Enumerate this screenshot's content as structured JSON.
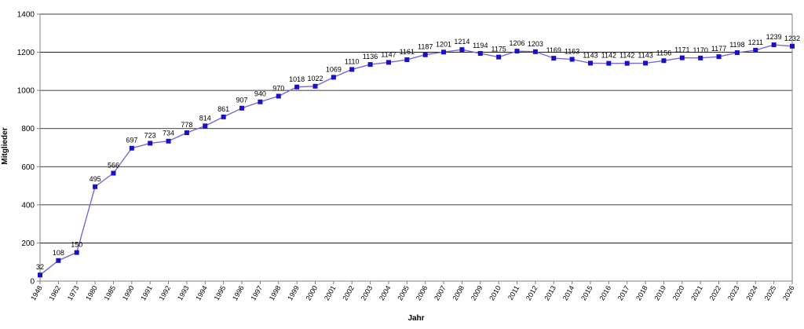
{
  "chart_data": {
    "type": "line",
    "title": "",
    "xlabel": "Jahr",
    "ylabel": "Mitglieder",
    "ylim": [
      0,
      1400
    ],
    "yticks": [
      0,
      200,
      400,
      600,
      800,
      1000,
      1200,
      1400
    ],
    "grid": "horizontal",
    "legend": "none",
    "series_color": "#7b68d6",
    "marker_color": "#1a10c8",
    "categories": [
      "1948",
      "1962",
      "1973",
      "1980",
      "1985",
      "1990",
      "1991",
      "1992",
      "1993",
      "1994",
      "1995",
      "1996",
      "1997",
      "1998",
      "1999",
      "2000",
      "2001",
      "2002",
      "2003",
      "2004",
      "2005",
      "2006",
      "2007",
      "2008",
      "2009",
      "2010",
      "2011",
      "2012",
      "2013",
      "2014",
      "2015",
      "2016",
      "2017",
      "2018",
      "2019",
      "2020",
      "2021",
      "2022",
      "2023",
      "2024",
      "2025",
      "2026"
    ],
    "values": [
      32,
      108,
      150,
      495,
      566,
      697,
      723,
      734,
      778,
      814,
      861,
      907,
      940,
      970,
      1018,
      1022,
      1069,
      1110,
      1136,
      1147,
      1161,
      1187,
      1201,
      1214,
      1194,
      1175,
      1206,
      1203,
      1169,
      1163,
      1143,
      1142,
      1142,
      1143,
      1156,
      1171,
      1170,
      1177,
      1198,
      1211,
      1239,
      1232
    ]
  }
}
